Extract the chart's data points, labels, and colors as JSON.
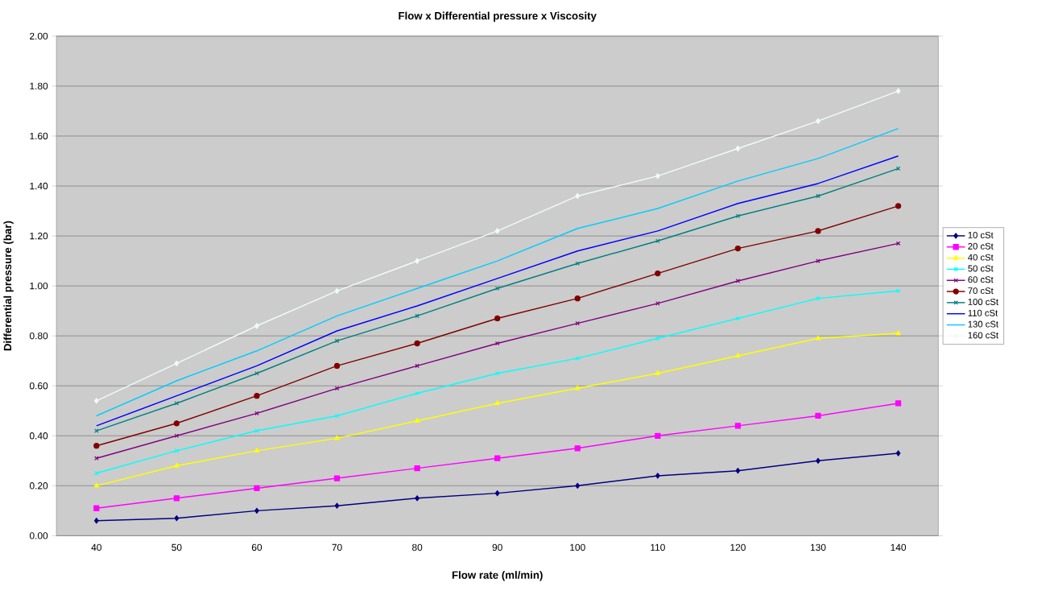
{
  "chart_data": {
    "type": "line",
    "title": "Flow x Differential pressure x Viscosity",
    "xlabel": "Flow rate (ml/min)",
    "ylabel": "Differential pressure (bar)",
    "categories": [
      "40",
      "50",
      "60",
      "70",
      "80",
      "90",
      "100",
      "110",
      "120",
      "130",
      "140"
    ],
    "series": [
      {
        "name": "10 cSt",
        "color": "#000080",
        "marker": "diamond",
        "values": [
          0.06,
          0.07,
          0.1,
          0.12,
          0.15,
          0.17,
          0.2,
          0.24,
          0.26,
          0.3,
          0.33
        ]
      },
      {
        "name": "20 cSt",
        "color": "#ff00ff",
        "marker": "square",
        "values": [
          0.11,
          0.15,
          0.19,
          0.23,
          0.27,
          0.31,
          0.35,
          0.4,
          0.44,
          0.48,
          0.53
        ]
      },
      {
        "name": "40 cSt",
        "color": "#ffff00",
        "marker": "triangle",
        "values": [
          0.2,
          0.28,
          0.34,
          0.39,
          0.46,
          0.53,
          0.59,
          0.65,
          0.72,
          0.79,
          0.81
        ]
      },
      {
        "name": "50 cSt",
        "color": "#00ffff",
        "marker": "cross",
        "values": [
          0.25,
          0.34,
          0.42,
          0.48,
          0.57,
          0.65,
          0.71,
          0.79,
          0.87,
          0.95,
          0.98
        ]
      },
      {
        "name": "60 cSt",
        "color": "#800080",
        "marker": "cross",
        "values": [
          0.31,
          0.4,
          0.49,
          0.59,
          0.68,
          0.77,
          0.85,
          0.93,
          1.02,
          1.1,
          1.17
        ]
      },
      {
        "name": "70 cSt",
        "color": "#800000",
        "marker": "circle",
        "values": [
          0.36,
          0.45,
          0.56,
          0.68,
          0.77,
          0.87,
          0.95,
          1.05,
          1.15,
          1.22,
          1.32
        ]
      },
      {
        "name": "100 cSt",
        "color": "#008080",
        "marker": "cross",
        "values": [
          0.42,
          0.53,
          0.65,
          0.78,
          0.88,
          0.99,
          1.09,
          1.18,
          1.28,
          1.36,
          1.47
        ]
      },
      {
        "name": "110 cSt",
        "color": "#0000ff",
        "marker": "none",
        "values": [
          0.44,
          0.56,
          0.68,
          0.82,
          0.92,
          1.03,
          1.14,
          1.22,
          1.33,
          1.41,
          1.52
        ]
      },
      {
        "name": "130 cSt",
        "color": "#00ccff",
        "marker": "none",
        "values": [
          0.48,
          0.62,
          0.74,
          0.88,
          0.99,
          1.1,
          1.23,
          1.31,
          1.42,
          1.51,
          1.63
        ]
      },
      {
        "name": "160 cSt",
        "color": "#eefcf8",
        "marker": "diamond",
        "values": [
          0.54,
          0.69,
          0.84,
          0.98,
          1.1,
          1.22,
          1.36,
          1.44,
          1.55,
          1.66,
          1.78
        ]
      }
    ],
    "ylim": [
      0,
      2
    ],
    "yticks": [
      {
        "value": 0,
        "label": "0.00"
      },
      {
        "value": 0.2,
        "label": "0.20"
      },
      {
        "value": 0.4,
        "label": "0.40"
      },
      {
        "value": 0.6,
        "label": "0.60"
      },
      {
        "value": 0.8,
        "label": "0.80"
      },
      {
        "value": 1,
        "label": "1.00"
      },
      {
        "value": 1.2,
        "label": "1.20"
      },
      {
        "value": 1.4,
        "label": "1.40"
      },
      {
        "value": 1.6,
        "label": "1.60"
      },
      {
        "value": 1.8,
        "label": "1.80"
      },
      {
        "value": 2,
        "label": "2.00"
      }
    ],
    "grid": "y",
    "legend": "right",
    "line_style": "solid"
  }
}
